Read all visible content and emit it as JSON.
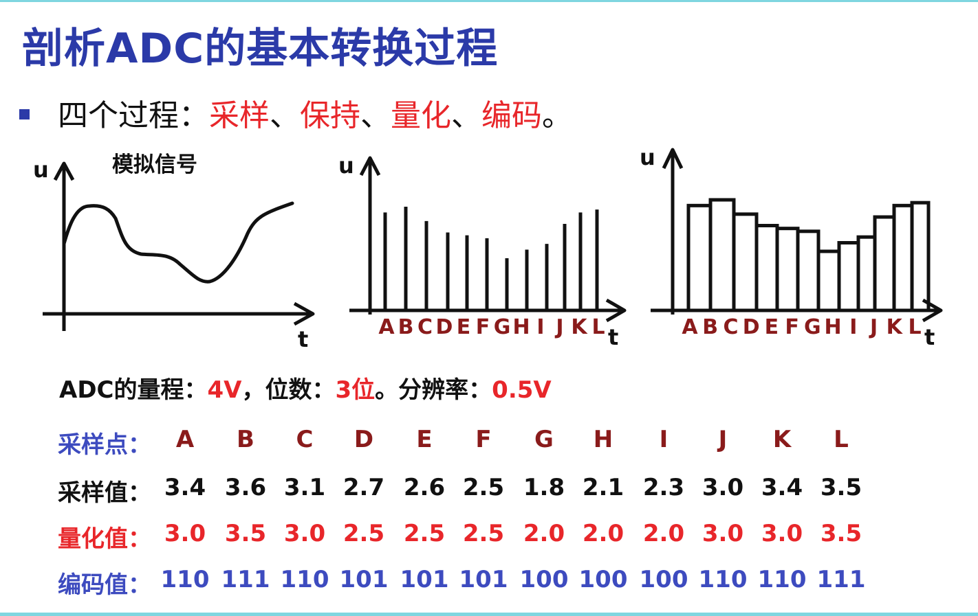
{
  "title": "剖析ADC的基本转换过程",
  "bullet": {
    "prefix": "四个过程：",
    "steps": [
      "采样",
      "保持",
      "量化",
      "编码"
    ],
    "sep": "、",
    "end": "。"
  },
  "graphs": {
    "analog_label": "模拟信号",
    "u_label": "u",
    "t_label": "t",
    "point_letters": [
      "A",
      "B",
      "C",
      "D",
      "E",
      "F",
      "G",
      "H",
      "I",
      "J",
      "K",
      "L"
    ]
  },
  "info": {
    "range_label": "ADC的量程：",
    "range_value": "4V",
    "bits_sep": "，",
    "bits_label": "位数：",
    "bits_value": "3位",
    "resolution_sep": "。",
    "resolution_label": "分辨率：",
    "resolution_value": "0.5V"
  },
  "table": {
    "points_label": "采样点：",
    "points": [
      "A",
      "B",
      "C",
      "D",
      "E",
      "F",
      "G",
      "H",
      "I",
      "J",
      "K",
      "L"
    ],
    "samples_label": "采样值：",
    "samples": [
      "3.4",
      "3.6",
      "3.1",
      "2.7",
      "2.6",
      "2.5",
      "1.8",
      "2.1",
      "2.3",
      "3.0",
      "3.4",
      "3.5"
    ],
    "quantized_label": "量化值：",
    "quantized": [
      "3.0",
      "3.5",
      "3.0",
      "2.5",
      "2.5",
      "2.5",
      "2.0",
      "2.0",
      "2.0",
      "3.0",
      "3.0",
      "3.5"
    ],
    "codes_label": "编码值：",
    "codes": [
      "110",
      "111",
      "110",
      "101",
      "101",
      "101",
      "100",
      "100",
      "100",
      "110",
      "110",
      "111"
    ]
  },
  "colors": {
    "title": "#2b3aa8",
    "highlight": "#e8262a",
    "blue_text": "#3d4bbf",
    "dark_red": "#8a1b1b"
  }
}
